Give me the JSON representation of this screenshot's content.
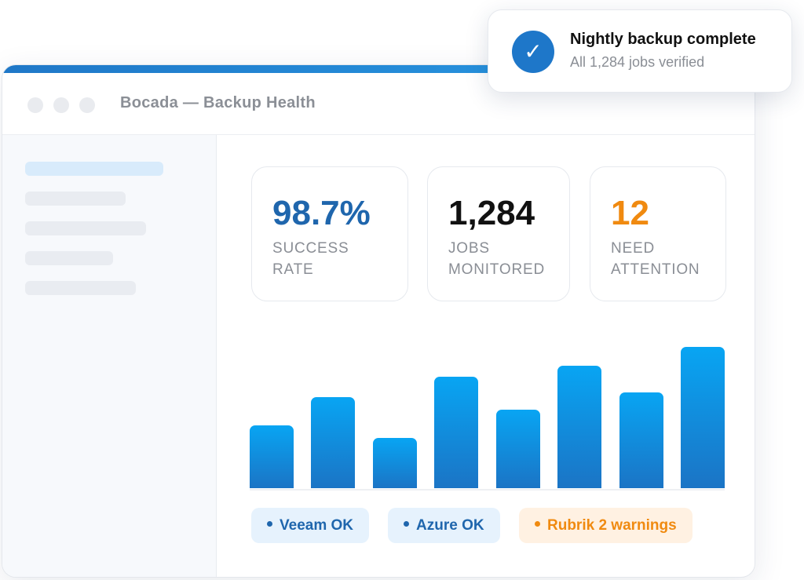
{
  "window": {
    "title": "Bocada — Backup Health"
  },
  "colors": {
    "accent": "#1f78c8",
    "bar_top": "#08a5f3",
    "bar_bottom": "#1b74c5",
    "ok": "#1f66ad",
    "warning": "#f08a10"
  },
  "stats": [
    {
      "value": "98.7%",
      "label_line1": "SUCCESS",
      "label_line2": "RATE",
      "color": "#1f66ad"
    },
    {
      "value": "1,284",
      "label_line1": "JOBS",
      "label_line2": "MONITORED",
      "color": "#111111"
    },
    {
      "value": "12",
      "label_line1": "NEED",
      "label_line2": "ATTENTION",
      "color": "#f08a10"
    }
  ],
  "chart_data": {
    "type": "bar",
    "values": [
      40,
      58,
      32,
      71,
      50,
      78,
      61,
      90
    ],
    "ylim": [
      0,
      100
    ],
    "grid": false,
    "legend": "none"
  },
  "statuses": [
    {
      "label": "Veeam OK",
      "kind": "ok"
    },
    {
      "label": "Azure OK",
      "kind": "ok"
    },
    {
      "label": "Rubrik 2 warnings",
      "kind": "warning"
    }
  ],
  "toast": {
    "icon": "check-icon",
    "title": "Nightly backup complete",
    "subtitle": "All 1,284 jobs verified"
  }
}
